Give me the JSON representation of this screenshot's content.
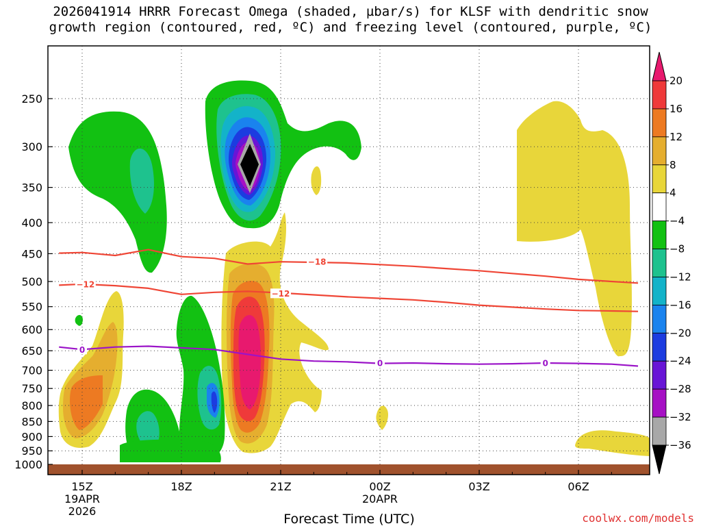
{
  "title_lines": [
    "2026041914 HRRR Forecast Omega (shaded, µbar/s) for KLSF with dendritic snow",
    "growth region (contoured, red, ºC) and freezing level (contoured, purple, ºC)"
  ],
  "credit": "coolwx.com/models",
  "chart_data": {
    "type": "heatmap",
    "xlabel": "Forecast Time (UTC)",
    "ylabel": "",
    "y_scale": "log-pressure",
    "ylim": [
      1000,
      200
    ],
    "xlim_hours": [
      14.3,
      31.8
    ],
    "x_ticks": [
      {
        "hour": 15,
        "lines": [
          "15Z",
          "19APR",
          "2026"
        ]
      },
      {
        "hour": 18,
        "lines": [
          "18Z"
        ]
      },
      {
        "hour": 21,
        "lines": [
          "21Z"
        ]
      },
      {
        "hour": 24,
        "lines": [
          "00Z",
          "20APR"
        ]
      },
      {
        "hour": 27,
        "lines": [
          "03Z"
        ]
      },
      {
        "hour": 30,
        "lines": [
          "06Z"
        ]
      }
    ],
    "y_ticks": [
      250,
      300,
      350,
      400,
      450,
      500,
      550,
      600,
      650,
      700,
      750,
      800,
      850,
      900,
      950,
      1000
    ],
    "grid": true,
    "colorbar": {
      "labels": [
        "20",
        "16",
        "12",
        "8",
        "4",
        "−4",
        "−8",
        "−12",
        "−16",
        "−20",
        "−24",
        "−28",
        "−32",
        "−36"
      ],
      "colors": [
        "#e8196e",
        "#ef3a3a",
        "#ed7a22",
        "#e5ae2f",
        "#e8d63a",
        "#ffffff",
        "#12c112",
        "#1ec28e",
        "#13b3c9",
        "#1a83ee",
        "#1c3ce0",
        "#6815d6",
        "#a610c4",
        "#a8a8a8",
        "#000000"
      ]
    },
    "shading": [
      {
        "label": "omega",
        "hour": 15.9,
        "pressure": 320,
        "level": -8
      },
      {
        "label": "omega",
        "hour": 20.0,
        "pressure": 320,
        "level": -36
      },
      {
        "label": "omega",
        "hour": 20.0,
        "pressure": 650,
        "level": 20
      },
      {
        "label": "omega",
        "hour": 15.0,
        "pressure": 770,
        "level": 12
      },
      {
        "label": "omega",
        "hour": 19.0,
        "pressure": 800,
        "level": -24
      },
      {
        "label": "omega",
        "hour": 17.0,
        "pressure": 840,
        "level": -12
      },
      {
        "label": "omega",
        "hour": 30.3,
        "pressure": 350,
        "level": 4
      }
    ],
    "series": [
      {
        "name": "-18",
        "color": "#ef4535",
        "x": [
          14.3,
          15.0,
          16.0,
          17.0,
          18.0,
          19.0,
          20.0,
          21.0,
          22.0,
          23.0,
          24.0,
          25.0,
          26.0,
          27.0,
          28.0,
          29.0,
          30.0,
          31.0,
          31.8
        ],
        "y": [
          449,
          448,
          453,
          443,
          455,
          458,
          468,
          464,
          465,
          466,
          469,
          472,
          476,
          480,
          485,
          490,
          496,
          500,
          503
        ]
      },
      {
        "name": "-12",
        "color": "#ef4535",
        "x": [
          14.3,
          15.0,
          16.0,
          17.0,
          18.0,
          19.0,
          20.0,
          21.0,
          22.0,
          23.0,
          24.0,
          25.0,
          26.0,
          27.0,
          28.0,
          29.0,
          30.0,
          31.0,
          31.8
        ],
        "y": [
          507,
          505,
          508,
          513,
          525,
          521,
          519,
          522,
          526,
          530,
          533,
          536,
          541,
          547,
          551,
          555,
          558,
          559,
          560
        ]
      },
      {
        "name": "0",
        "color": "#9b14c8",
        "x": [
          14.3,
          15.0,
          16.0,
          17.0,
          18.0,
          19.0,
          20.0,
          21.0,
          22.0,
          23.0,
          24.0,
          25.0,
          26.0,
          27.0,
          28.0,
          29.0,
          30.0,
          31.0,
          31.8
        ],
        "y": [
          641,
          647,
          641,
          639,
          643,
          647,
          659,
          671,
          676,
          678,
          682,
          681,
          683,
          684,
          683,
          681,
          682,
          684,
          689
        ]
      }
    ],
    "contour_labels": [
      {
        "text": "−18",
        "hour": 22.1,
        "pressure": 464,
        "series": "-18"
      },
      {
        "text": "−12",
        "hour": 15.1,
        "pressure": 505,
        "series": "-12"
      },
      {
        "text": "−12",
        "hour": 21.0,
        "pressure": 523,
        "series": "-12"
      },
      {
        "text": "0",
        "hour": 15.0,
        "pressure": 647,
        "series": "0"
      },
      {
        "text": "0",
        "hour": 24.0,
        "pressure": 681,
        "series": "0"
      },
      {
        "text": "0",
        "hour": 29.0,
        "pressure": 681,
        "series": "0"
      }
    ]
  }
}
